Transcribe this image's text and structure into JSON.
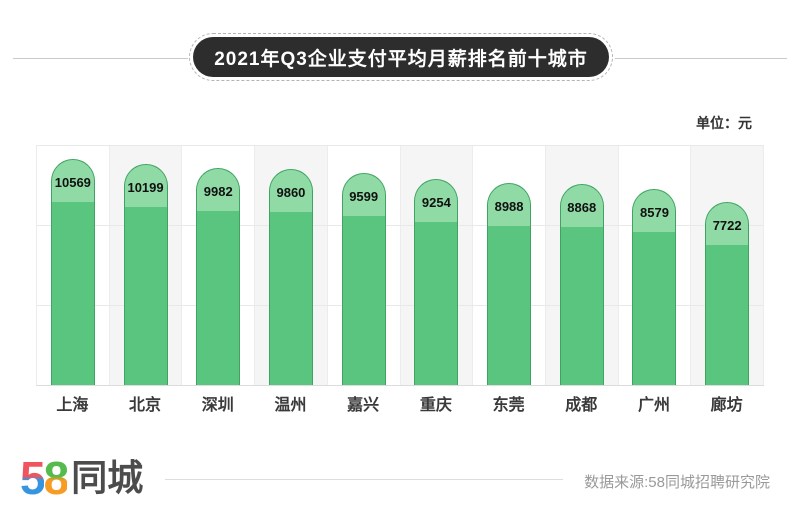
{
  "title": "2021年Q3企业支付平均月薪排名前十城市",
  "unit_label": "单位：元",
  "chart_data": {
    "type": "bar",
    "categories": [
      "上海",
      "北京",
      "深圳",
      "温州",
      "嘉兴",
      "重庆",
      "东莞",
      "成都",
      "广州",
      "廊坊"
    ],
    "values": [
      10569,
      10199,
      9982,
      9860,
      9599,
      9254,
      8988,
      8868,
      8579,
      7722
    ],
    "title": "2021年Q3企业支付平均月薪排名前十城市",
    "xlabel": "",
    "ylabel": "单位：元",
    "ylim": [
      0,
      11000
    ],
    "grid": "horizontal-lines, alternating column shading",
    "legend": "none",
    "colors": {
      "bar_body": "#5ac57e",
      "bar_cap": "#90dba5",
      "bar_border": "#3fa363",
      "column_alt_bg": "#f5f5f6",
      "title_pill_bg": "#2d2d2d"
    }
  },
  "footer": {
    "logo_5": "5",
    "logo_8": "8",
    "logo_text": "同城",
    "source": "数据来源:58同城招聘研究院"
  }
}
